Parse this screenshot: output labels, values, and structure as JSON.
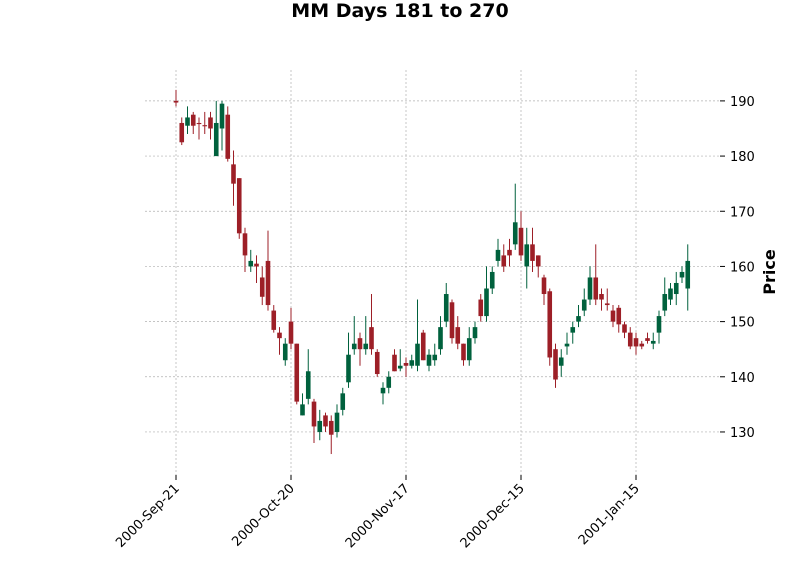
{
  "chart_data": {
    "type": "candlestick",
    "title": "MM Days 181 to 270",
    "y_label": "Price",
    "categories": [
      "2000-Sep-21",
      null,
      null,
      null,
      null,
      null,
      null,
      null,
      null,
      null,
      null,
      null,
      null,
      null,
      null,
      null,
      null,
      null,
      null,
      null,
      "2000-Oct-20",
      null,
      null,
      null,
      null,
      null,
      null,
      null,
      null,
      null,
      null,
      null,
      null,
      null,
      null,
      null,
      null,
      null,
      null,
      null,
      "2000-Nov-17",
      null,
      null,
      null,
      null,
      null,
      null,
      null,
      null,
      null,
      null,
      null,
      null,
      null,
      null,
      null,
      null,
      null,
      null,
      null,
      "2000-Dec-15",
      null,
      null,
      null,
      null,
      null,
      null,
      null,
      null,
      null,
      null,
      null,
      null,
      null,
      null,
      null,
      null,
      null,
      null,
      null,
      "2001-Jan-15",
      null,
      null,
      null,
      null,
      null,
      null,
      null,
      null,
      null
    ],
    "open": [
      190,
      186,
      185.5,
      187.5,
      186,
      185.6,
      187,
      180,
      185,
      187.5,
      178.5,
      176,
      166,
      160,
      160.5,
      158,
      161,
      152,
      148,
      143,
      150,
      146,
      133,
      136,
      135.5,
      130,
      133,
      132,
      130,
      134,
      139,
      145,
      147,
      145,
      149,
      144.5,
      137,
      138,
      144,
      141.5,
      142.5,
      142,
      142,
      148,
      142,
      143,
      145,
      150,
      153.5,
      149,
      146,
      143,
      147,
      154,
      151,
      156,
      161,
      162,
      163,
      164,
      167,
      160,
      164,
      162,
      158,
      155.5,
      145,
      142,
      145.5,
      148,
      150,
      152,
      154,
      158,
      155,
      153.3,
      152,
      152.5,
      149.5,
      148,
      147,
      146,
      147,
      146,
      148,
      152,
      154,
      155,
      158,
      156
    ],
    "high": [
      192,
      187,
      189,
      188,
      187,
      188,
      188,
      190,
      190,
      189,
      181,
      176,
      167,
      163,
      162,
      160,
      166.5,
      153,
      149,
      147,
      152.5,
      146,
      137,
      145,
      136,
      134,
      133.5,
      133,
      135,
      138,
      148,
      151,
      148,
      151,
      155,
      145,
      139,
      141,
      145,
      145,
      143.5,
      144,
      154,
      148.5,
      145,
      146,
      151,
      157,
      154,
      151,
      146,
      149,
      150,
      155,
      160,
      160,
      165,
      164,
      165,
      175,
      170,
      167,
      167,
      162,
      158.5,
      156,
      146,
      145,
      148,
      150,
      153,
      156,
      160,
      164,
      156,
      156,
      153,
      153,
      150,
      149,
      148,
      146.5,
      148,
      148,
      152,
      158,
      157,
      159,
      160,
      164
    ],
    "low": [
      189,
      182,
      184,
      184,
      183,
      184,
      183,
      180,
      181,
      179,
      171,
      165,
      159,
      159,
      157,
      153,
      152,
      148,
      144,
      142,
      145,
      135,
      133,
      135,
      128,
      128.5,
      130,
      126,
      129,
      133,
      138,
      144,
      142,
      144,
      144,
      140,
      135,
      137,
      141,
      141,
      140,
      141.5,
      141,
      143,
      141,
      142,
      144,
      149,
      146,
      145,
      142,
      142,
      146,
      150,
      150,
      155,
      160,
      159,
      160,
      163,
      161,
      156,
      159,
      158,
      153,
      142,
      138,
      140,
      144,
      146,
      149,
      151,
      153,
      153,
      152,
      152,
      149,
      148,
      147,
      145,
      144,
      145,
      146,
      145,
      146,
      151,
      153,
      153,
      157,
      152
    ],
    "close": [
      189.7,
      182.5,
      187,
      185.5,
      185.8,
      185.4,
      185,
      186,
      189.5,
      179.5,
      175,
      166,
      162,
      161,
      160,
      154.5,
      153,
      148.5,
      147,
      146,
      146,
      135.5,
      135,
      141,
      131,
      132,
      131,
      129.5,
      133.5,
      137,
      144,
      146,
      145,
      146,
      145,
      140.5,
      138,
      140,
      141,
      142,
      142,
      143,
      146,
      143,
      144,
      144,
      149,
      155,
      147,
      146,
      143,
      147,
      149,
      151,
      156,
      159,
      163,
      160,
      162,
      168,
      162,
      164,
      161,
      160,
      155,
      143.5,
      139.5,
      143.5,
      146,
      149,
      151,
      154,
      158,
      154,
      154,
      153,
      150,
      149.5,
      148,
      145.5,
      145.5,
      145.5,
      146.5,
      146.5,
      151,
      155,
      156,
      157,
      159,
      161
    ],
    "up_color": "#00613d",
    "down_color": "#9d1f27",
    "ylim": [
      122.2,
      195.6
    ],
    "yticks": [
      130,
      140,
      150,
      160,
      170,
      180,
      190
    ],
    "grid": true
  }
}
